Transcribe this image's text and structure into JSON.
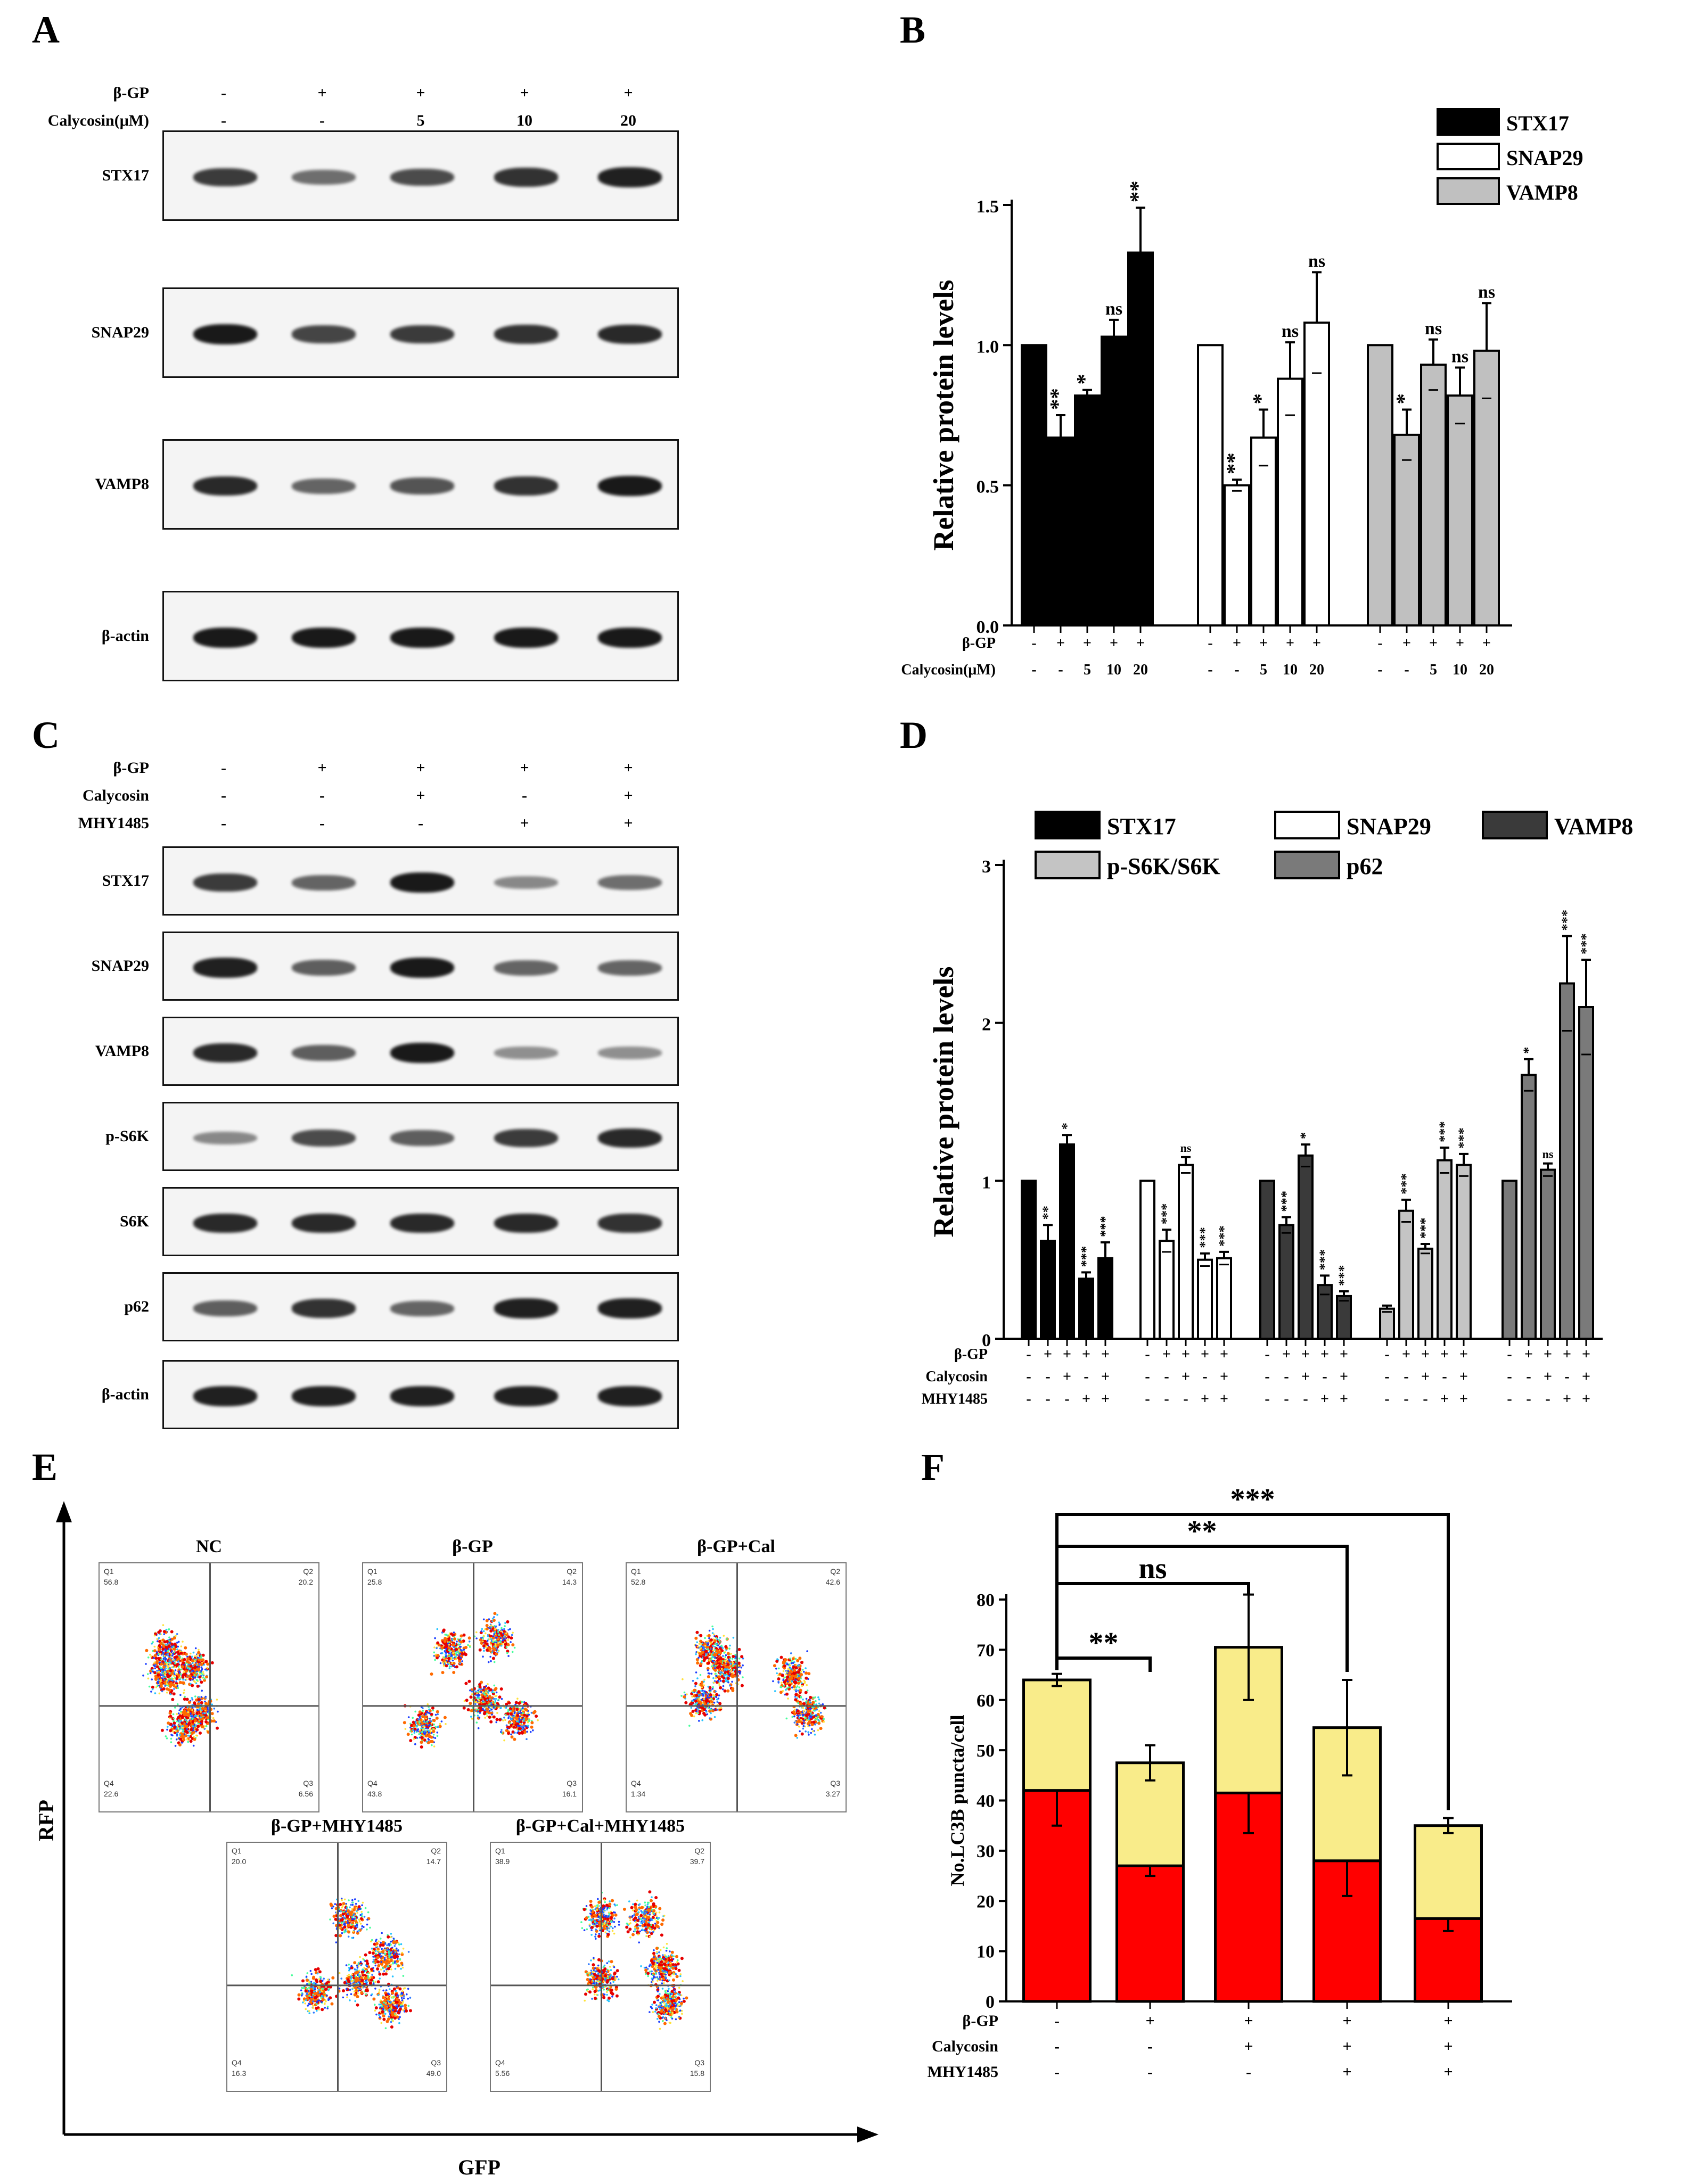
{
  "panels": {
    "A": {
      "label": "A",
      "row_labels": [
        "β-GP",
        "Calycosin(μM)"
      ],
      "conditions": [
        [
          "-",
          "-"
        ],
        [
          "+",
          "-"
        ],
        [
          "+",
          "5"
        ],
        [
          "+",
          "10"
        ],
        [
          "+",
          "20"
        ]
      ],
      "blots": [
        {
          "name": "STX17",
          "intensity": [
            0.75,
            0.45,
            0.65,
            0.8,
            0.9
          ]
        },
        {
          "name": "SNAP29",
          "intensity": [
            0.95,
            0.7,
            0.75,
            0.8,
            0.85
          ]
        },
        {
          "name": "VAMP8",
          "intensity": [
            0.85,
            0.5,
            0.6,
            0.8,
            0.95
          ]
        },
        {
          "name": "β-actin",
          "intensity": [
            0.95,
            0.95,
            0.95,
            0.95,
            0.95
          ]
        }
      ]
    },
    "B": {
      "label": "B",
      "legend": [
        "STX17",
        "SNAP29",
        "VAMP8"
      ],
      "ylabel": "Relative protein levels",
      "yticks": [
        "0.0",
        "0.5",
        "1.0",
        "1.5"
      ],
      "x_row_labels": [
        "β-GP",
        "Calycosin(μM)"
      ],
      "group_x_labels": [
        [
          "-",
          "+",
          "+",
          "+",
          "+"
        ],
        [
          "-",
          "-",
          "5",
          "10",
          "20"
        ]
      ]
    },
    "C": {
      "label": "C",
      "row_labels": [
        "β-GP",
        "Calycosin",
        "MHY1485"
      ],
      "conditions": [
        [
          "-",
          "-",
          "-"
        ],
        [
          "+",
          "-",
          "-"
        ],
        [
          "+",
          "+",
          "-"
        ],
        [
          "+",
          "-",
          "+"
        ],
        [
          "+",
          "+",
          "+"
        ]
      ],
      "blots": [
        {
          "name": "STX17",
          "intensity": [
            0.75,
            0.5,
            0.95,
            0.3,
            0.45
          ]
        },
        {
          "name": "SNAP29",
          "intensity": [
            0.9,
            0.55,
            0.95,
            0.5,
            0.5
          ]
        },
        {
          "name": "VAMP8",
          "intensity": [
            0.85,
            0.55,
            0.95,
            0.25,
            0.25
          ]
        },
        {
          "name": "p-S6K",
          "intensity": [
            0.3,
            0.65,
            0.55,
            0.75,
            0.85
          ]
        },
        {
          "name": "S6K",
          "intensity": [
            0.85,
            0.85,
            0.85,
            0.85,
            0.8
          ]
        },
        {
          "name": "p62",
          "intensity": [
            0.55,
            0.8,
            0.5,
            0.9,
            0.9
          ]
        },
        {
          "name": "β-actin",
          "intensity": [
            0.9,
            0.9,
            0.9,
            0.9,
            0.9
          ]
        }
      ]
    },
    "D": {
      "label": "D",
      "legend": [
        "STX17",
        "SNAP29",
        "VAMP8",
        "p-S6K/S6K",
        "p62"
      ],
      "ylabel": "Relative protein levels",
      "yticks": [
        "0",
        "1",
        "2",
        "3"
      ],
      "x_row_labels": [
        "β-GP",
        "Calycosin",
        "MHY1485"
      ],
      "group_x_labels": [
        [
          "-",
          "+",
          "+",
          "+",
          "+"
        ],
        [
          "-",
          "-",
          "+",
          "-",
          "+"
        ],
        [
          "-",
          "-",
          "-",
          "+",
          "+"
        ]
      ]
    },
    "E": {
      "label": "E",
      "xlabel": "GFP",
      "ylabel": "RFP",
      "plots": [
        {
          "title": "NC",
          "q1": "56.8",
          "q2": "20.2",
          "q3": "6.56",
          "q4": "22.6"
        },
        {
          "title": "β-GP",
          "q1": "25.8",
          "q2": "14.3",
          "q3": "16.1",
          "q4": "43.8"
        },
        {
          "title": "β-GP+Cal",
          "q1": "52.8",
          "q2": "42.6",
          "q3": "3.27",
          "q4": "1.34"
        },
        {
          "title": "β-GP+MHY1485",
          "q1": "20.0",
          "q2": "14.7",
          "q3": "49.0",
          "q4": "16.3"
        },
        {
          "title": "β-GP+Cal+MHY1485",
          "q1": "38.9",
          "q2": "39.7",
          "q3": "15.8",
          "q4": "5.56"
        }
      ],
      "quadrant_labels": [
        "Q1",
        "Q2",
        "Q3",
        "Q4"
      ]
    },
    "F": {
      "label": "F",
      "ylabel": "No.LC3B puncta/cell",
      "yticks": [
        "0",
        "10",
        "20",
        "30",
        "40",
        "50",
        "60",
        "70",
        "80"
      ],
      "x_row_labels": [
        "β-GP",
        "Calycosin",
        "MHY1485"
      ],
      "group_x_labels": [
        [
          "-",
          "+",
          "+",
          "+",
          "+"
        ],
        [
          "-",
          "-",
          "+",
          "+",
          "+"
        ],
        [
          "-",
          "-",
          "-",
          "+",
          "+"
        ]
      ],
      "brackets": [
        "**",
        "ns",
        "**",
        "***"
      ]
    }
  },
  "chart_data": [
    {
      "panel": "B",
      "type": "bar",
      "ylabel": "Relative protein levels",
      "ylim": [
        0,
        1.5
      ],
      "categories": [
        "-/-",
        "+/-",
        "+/5",
        "+/10",
        "+/20"
      ],
      "series": [
        {
          "name": "STX17",
          "color": "#000000",
          "values": [
            1.0,
            0.67,
            0.82,
            1.03,
            1.33
          ],
          "errors": [
            0,
            0.08,
            0.02,
            0.06,
            0.16
          ],
          "sig": [
            "",
            "**",
            "*",
            "ns",
            "**"
          ]
        },
        {
          "name": "SNAP29",
          "color": "#ffffff",
          "values": [
            1.0,
            0.5,
            0.67,
            0.88,
            1.08
          ],
          "errors": [
            0,
            0.02,
            0.1,
            0.13,
            0.18
          ],
          "sig": [
            "",
            "**",
            "*",
            "ns",
            "ns"
          ]
        },
        {
          "name": "VAMP8",
          "color": "#c0c0c0",
          "values": [
            1.0,
            0.68,
            0.93,
            0.82,
            0.98
          ],
          "errors": [
            0,
            0.09,
            0.09,
            0.1,
            0.17
          ],
          "sig": [
            "",
            "*",
            "ns",
            "ns",
            "ns"
          ]
        }
      ]
    },
    {
      "panel": "D",
      "type": "bar",
      "ylabel": "Relative protein levels",
      "ylim": [
        0,
        3
      ],
      "categories": [
        "-/-/-",
        "+/-/-",
        "+/+/-",
        "+/-/+",
        "+/+/+"
      ],
      "series": [
        {
          "name": "STX17",
          "color": "#000000",
          "values": [
            1.0,
            0.62,
            1.23,
            0.38,
            0.51
          ],
          "errors": [
            0,
            0.1,
            0.06,
            0.04,
            0.1
          ],
          "sig": [
            "",
            "**",
            "*",
            "***",
            "***"
          ]
        },
        {
          "name": "SNAP29",
          "color": "#ffffff",
          "values": [
            1.0,
            0.62,
            1.1,
            0.5,
            0.51
          ],
          "errors": [
            0,
            0.07,
            0.05,
            0.04,
            0.04
          ],
          "sig": [
            "",
            "***",
            "ns",
            "***",
            "***"
          ]
        },
        {
          "name": "VAMP8",
          "color": "#3a3a3a",
          "values": [
            1.0,
            0.72,
            1.16,
            0.34,
            0.27
          ],
          "errors": [
            0,
            0.05,
            0.07,
            0.06,
            0.03
          ],
          "sig": [
            "",
            "***",
            "*",
            "***",
            "***"
          ]
        },
        {
          "name": "p-S6K/S6K",
          "color": "#c4c4c4",
          "values": [
            0.19,
            0.81,
            0.57,
            1.13,
            1.1
          ],
          "errors": [
            0.02,
            0.07,
            0.03,
            0.08,
            0.07
          ],
          "sig": [
            "",
            "***",
            "***",
            "***",
            "***"
          ]
        },
        {
          "name": "p62",
          "color": "#7a7a7a",
          "values": [
            1.0,
            1.67,
            1.07,
            2.25,
            2.1
          ],
          "errors": [
            0,
            0.1,
            0.04,
            0.3,
            0.3
          ],
          "sig": [
            "",
            "*",
            "ns",
            "***",
            "***"
          ]
        }
      ]
    },
    {
      "panel": "F",
      "type": "bar",
      "stacked": true,
      "ylabel": "No.LC3B puncta/cell",
      "ylim": [
        0,
        80
      ],
      "categories": [
        "-/-/-",
        "+/-/-",
        "+/+/-",
        "+/+/+",
        "+/+/+ (2)"
      ],
      "series": [
        {
          "name": "red",
          "color": "#ff0000",
          "values": [
            42,
            27,
            41.5,
            28,
            16.5
          ],
          "errors": [
            7,
            2,
            8,
            7,
            2.5
          ]
        },
        {
          "name": "yellow",
          "color": "#f9ec8a",
          "values": [
            22,
            20.5,
            29,
            26.5,
            18.5
          ],
          "errors": [
            1.2,
            3.5,
            10.5,
            9.5,
            1.5
          ]
        }
      ],
      "significance": [
        {
          "from": 0,
          "to": 1,
          "label": "**"
        },
        {
          "from": 0,
          "to": 2,
          "label": "ns"
        },
        {
          "from": 0,
          "to": 3,
          "label": "**"
        },
        {
          "from": 0,
          "to": 4,
          "label": "***"
        }
      ]
    }
  ]
}
